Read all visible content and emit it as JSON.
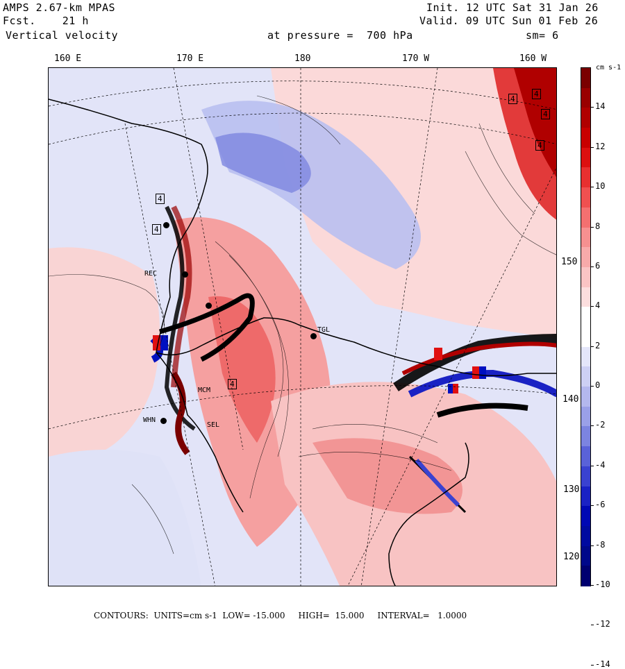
{
  "header": {
    "model": "AMPS 2.67-km MPAS",
    "forecast": "Fcst.    21 h",
    "field": "Vertical velocity",
    "init": "Init. 12 UTC Sat 31 Jan 26",
    "valid": "Valid. 09 UTC Sun 01 Feb 26",
    "pressure": "at pressure =  700 hPa",
    "smoothing": "sm= 6"
  },
  "longitude_labels": [
    "160 E",
    "170 E",
    "180",
    "170 W",
    "160 W"
  ],
  "latitude_labels": [
    "150 W",
    "140 W",
    "130 W",
    "120 W"
  ],
  "colorbar": {
    "units_label": "cm s-1",
    "ticks": [
      "14",
      "12",
      "10",
      "8",
      "6",
      "4",
      "2",
      "0",
      "-2",
      "-4",
      "-6",
      "-8",
      "-10",
      "-12",
      "-14"
    ],
    "colors": [
      "#7a0000",
      "#990000",
      "#b00000",
      "#c80000",
      "#dc1010",
      "#e83030",
      "#f05050",
      "#f47070",
      "#f69090",
      "#f8aaaa",
      "#fac4c4",
      "#fcdede",
      "#ffffff",
      "#ffffff",
      "#e4e6fa",
      "#cdd0f4",
      "#b4b8ee",
      "#9aa0e8",
      "#7c84e0",
      "#5a62d8",
      "#3a42d0",
      "#1a22c4",
      "#0008b4",
      "#000aa0",
      "#00088a",
      "#000070"
    ]
  },
  "stations": [
    "REC",
    "MCM",
    "WHN",
    "SEL",
    "TGL"
  ],
  "contour_boxes": [
    "4",
    "4",
    "4",
    "4",
    "4",
    "4",
    "4"
  ],
  "footer": "CONTOURS:  UNITS=cm s-1  LOW= -15.000     HIGH=  15.000     INTERVAL=   1.0000"
}
